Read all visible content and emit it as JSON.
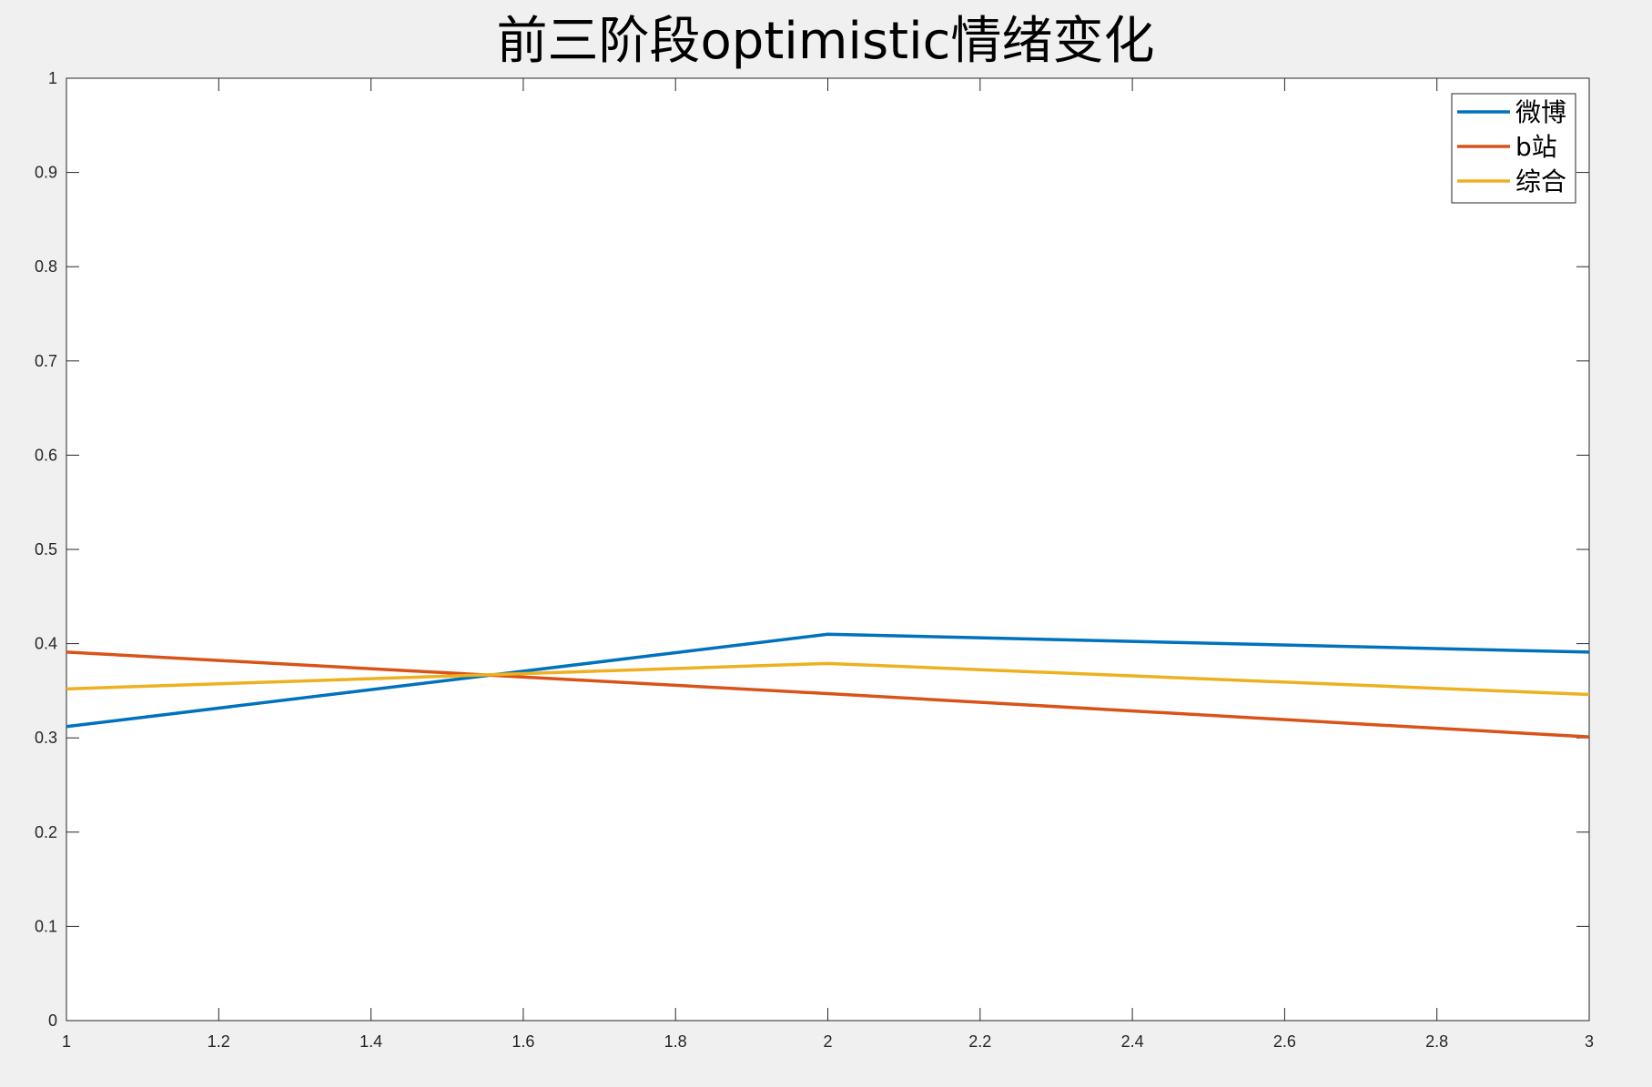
{
  "chart_data": {
    "type": "line",
    "title": "前三阶段optimistic情绪变化",
    "xlabel": "",
    "ylabel": "",
    "xlim": [
      1,
      3
    ],
    "ylim": [
      0,
      1
    ],
    "x_ticks": [
      1,
      1.2,
      1.4,
      1.6,
      1.8,
      2,
      2.2,
      2.4,
      2.6,
      2.8,
      3
    ],
    "x_tick_labels": [
      "1",
      "1.2",
      "1.4",
      "1.6",
      "1.8",
      "2",
      "2.2",
      "2.4",
      "2.6",
      "2.8",
      "3"
    ],
    "y_ticks": [
      0,
      0.1,
      0.2,
      0.3,
      0.4,
      0.5,
      0.6,
      0.7,
      0.8,
      0.9,
      1
    ],
    "y_tick_labels": [
      "0",
      "0.1",
      "0.2",
      "0.3",
      "0.4",
      "0.5",
      "0.6",
      "0.7",
      "0.8",
      "0.9",
      "1"
    ],
    "grid": false,
    "legend_position": "top-right",
    "x": [
      1,
      2,
      3
    ],
    "series": [
      {
        "name": "微博",
        "color": "#0072BD",
        "values": [
          0.312,
          0.41,
          0.391
        ]
      },
      {
        "name": "b站",
        "color": "#D95319",
        "values": [
          0.391,
          0.347,
          0.301
        ]
      },
      {
        "name": "综合",
        "color": "#EDB120",
        "values": [
          0.352,
          0.379,
          0.346
        ]
      }
    ]
  }
}
